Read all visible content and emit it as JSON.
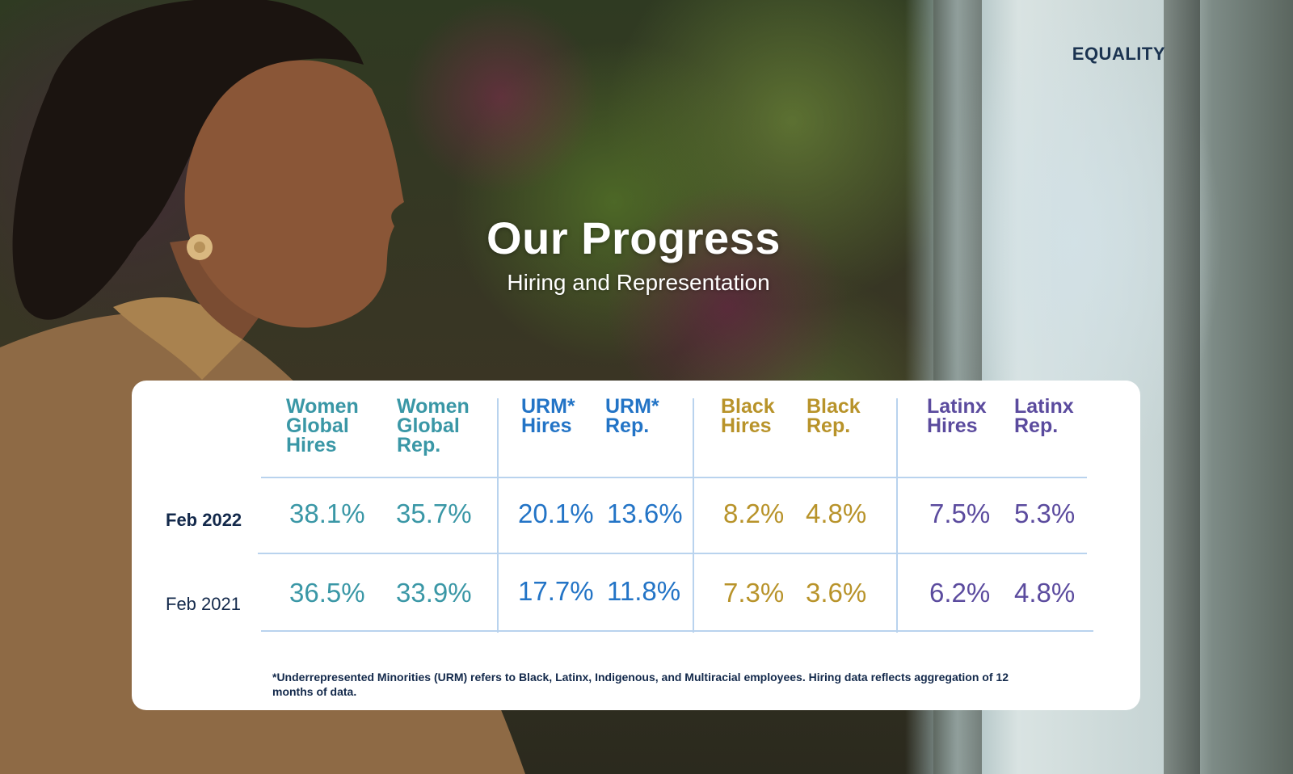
{
  "brand": "EQUALITY",
  "title": "Our Progress",
  "subtitle": "Hiring and Representation",
  "table": {
    "headers": [
      "Women\nGlobal\nHires",
      "Women\nGlobal\nRep.",
      "URM*\nHires",
      "URM*\nRep.",
      "Black\nHires",
      "Black\nRep.",
      "Latinx\nHires",
      "Latinx\nRep."
    ],
    "rows": [
      {
        "label": "Feb 2022",
        "values": [
          "38.1%",
          "35.7%",
          "20.1%",
          "13.6%",
          "8.2%",
          "4.8%",
          "7.5%",
          "5.3%"
        ]
      },
      {
        "label": "Feb 2021",
        "values": [
          "36.5%",
          "33.9%",
          "17.7%",
          "11.8%",
          "7.3%",
          "3.6%",
          "6.2%",
          "4.8%"
        ]
      }
    ],
    "footnote": "*Underrepresented Minorities (URM) refers to Black, Latinx, Indigenous, and Multiracial employees. Hiring data reflects aggregation of 12 months of data."
  },
  "colors": {
    "women": "#3a97a6",
    "urm": "#2374c6",
    "black": "#b8932a",
    "latinx": "#5b4b9e",
    "label": "#13294b",
    "gridline": "#b9d3ee"
  }
}
